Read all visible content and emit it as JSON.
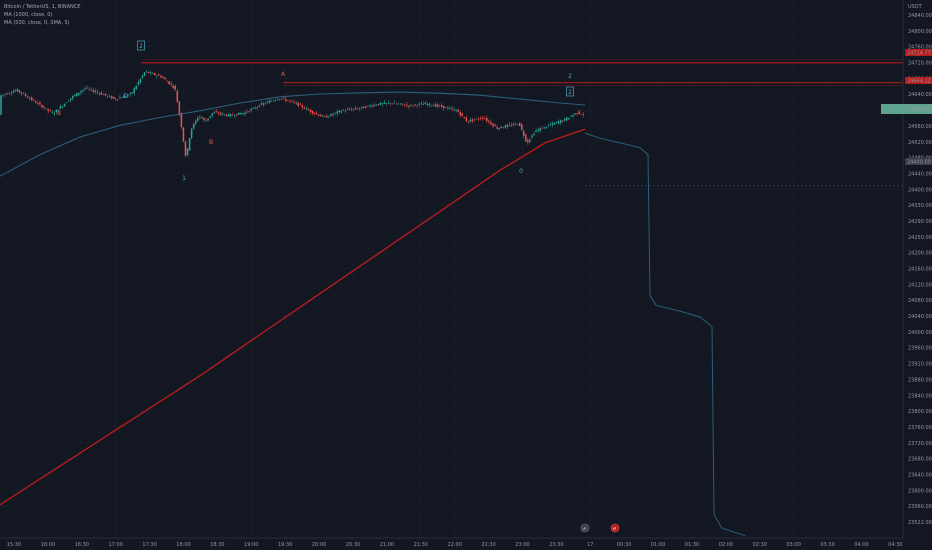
{
  "legend": {
    "symbol": "Bitcoin / TetherUS, 1, BINANCE",
    "ma1": "MA (1000, close, 0)",
    "ma2": "MA (500, close, 0, SMA, 5)"
  },
  "colors": {
    "background": "#131722",
    "candle_up": "#26a69a",
    "candle_down": "#ef5350",
    "resistance": "#b71c1c",
    "ma1000": "#b71c1c",
    "ma500": "#2a5f7a",
    "wave_blue": "#4fa3c7",
    "wave_red": "#e2574c",
    "price_tag": "#5fa38e"
  },
  "axis": {
    "currency": "USDT",
    "y_labels": [
      "24840.00",
      "24800.00",
      "24760.00",
      "24720.00",
      "24680.00",
      "24640.00",
      "24600.00",
      "24560.00",
      "24520.00",
      "24480.00",
      "24440.00",
      "24400.00",
      "24330.00",
      "24290.00",
      "24250.00",
      "24200.00",
      "24160.00",
      "24120.00",
      "24080.00",
      "24040.00",
      "24000.00",
      "23960.00",
      "23910.00",
      "23880.00",
      "23840.00",
      "23800.00",
      "23760.00",
      "23720.00",
      "23680.00",
      "23640.00",
      "23600.00",
      "23560.00",
      "23522.00"
    ],
    "x_labels": [
      "15:30",
      "16:00",
      "16:30",
      "17:00",
      "17:30",
      "18:00",
      "18:30",
      "19:00",
      "19:30",
      "20:00",
      "20:30",
      "21:00",
      "21:30",
      "22:00",
      "22:30",
      "23:00",
      "23:30",
      "17",
      "00:30",
      "01:00",
      "01:30",
      "02:00",
      "02:30",
      "03:00",
      "03:30",
      "04:00",
      "04:30"
    ]
  },
  "tags": {
    "upper_resistance": "24714.77",
    "lower_resistance": "24664.12",
    "current": "24590.00",
    "dashed_level": "24400.00"
  },
  "waves": {
    "left_red": "B",
    "top_boxed": "2",
    "left_blue": "D",
    "mid_red": "B",
    "one": "1",
    "top_red": "A",
    "right_two": "2",
    "right_boxed": "2",
    "zero": "0"
  },
  "chart_data": {
    "type": "candlestick",
    "title": "Bitcoin / TetherUS, 1, BINANCE",
    "ylim": [
      23500,
      24860
    ],
    "x_axis": [
      "15:30",
      "16:00",
      "16:30",
      "17:00",
      "17:30",
      "18:00",
      "18:30",
      "19:00",
      "19:30",
      "20:00",
      "20:30",
      "21:00",
      "21:30",
      "22:00",
      "22:30",
      "23:00",
      "23:30",
      "17",
      "00:30",
      "01:00",
      "01:30",
      "02:00",
      "02:30",
      "03:00",
      "03:30",
      "04:00",
      "04:30"
    ],
    "price_path": [
      [
        0,
        24630
      ],
      [
        18,
        24645
      ],
      [
        36,
        24615
      ],
      [
        54,
        24585
      ],
      [
        72,
        24625
      ],
      [
        86,
        24650
      ],
      [
        100,
        24638
      ],
      [
        116,
        24622
      ],
      [
        132,
        24635
      ],
      [
        146,
        24692
      ],
      [
        162,
        24680
      ],
      [
        176,
        24650
      ],
      [
        182,
        24560
      ],
      [
        187,
        24470
      ],
      [
        192,
        24545
      ],
      [
        200,
        24580
      ],
      [
        206,
        24565
      ],
      [
        214,
        24588
      ],
      [
        230,
        24580
      ],
      [
        246,
        24587
      ],
      [
        262,
        24608
      ],
      [
        280,
        24625
      ],
      [
        296,
        24612
      ],
      [
        312,
        24590
      ],
      [
        326,
        24575
      ],
      [
        342,
        24592
      ],
      [
        360,
        24598
      ],
      [
        376,
        24608
      ],
      [
        392,
        24612
      ],
      [
        410,
        24605
      ],
      [
        426,
        24610
      ],
      [
        442,
        24603
      ],
      [
        458,
        24592
      ],
      [
        468,
        24565
      ],
      [
        484,
        24575
      ],
      [
        498,
        24548
      ],
      [
        512,
        24555
      ],
      [
        520,
        24560
      ],
      [
        528,
        24510
      ],
      [
        536,
        24540
      ],
      [
        550,
        24555
      ],
      [
        566,
        24570
      ],
      [
        578,
        24588
      ],
      [
        585,
        24582
      ]
    ],
    "ma1000": [
      [
        0,
        23585
      ],
      [
        100,
        23750
      ],
      [
        200,
        23915
      ],
      [
        300,
        24090
      ],
      [
        400,
        24265
      ],
      [
        500,
        24440
      ],
      [
        545,
        24510
      ],
      [
        585,
        24545
      ]
    ],
    "ma500_history": [
      [
        0,
        24425
      ],
      [
        40,
        24480
      ],
      [
        80,
        24525
      ],
      [
        120,
        24555
      ],
      [
        160,
        24575
      ],
      [
        200,
        24592
      ],
      [
        240,
        24612
      ],
      [
        280,
        24628
      ],
      [
        320,
        24635
      ],
      [
        360,
        24638
      ],
      [
        400,
        24640
      ],
      [
        440,
        24637
      ],
      [
        480,
        24632
      ],
      [
        520,
        24622
      ],
      [
        560,
        24612
      ],
      [
        585,
        24607
      ]
    ],
    "ma500_projection": [
      [
        585,
        24535
      ],
      [
        600,
        24522
      ],
      [
        620,
        24510
      ],
      [
        640,
        24498
      ],
      [
        648,
        24480
      ],
      [
        650,
        24120
      ],
      [
        656,
        24095
      ],
      [
        680,
        24080
      ],
      [
        700,
        24065
      ],
      [
        712,
        24040
      ],
      [
        714,
        23560
      ],
      [
        722,
        23525
      ],
      [
        745,
        23506
      ]
    ],
    "levels": [
      {
        "name": "resistance_upper",
        "price": 24714.77
      },
      {
        "name": "resistance_lower",
        "price": 24664.12
      },
      {
        "name": "dashed",
        "price": 24400
      }
    ],
    "current_price": 24590
  }
}
